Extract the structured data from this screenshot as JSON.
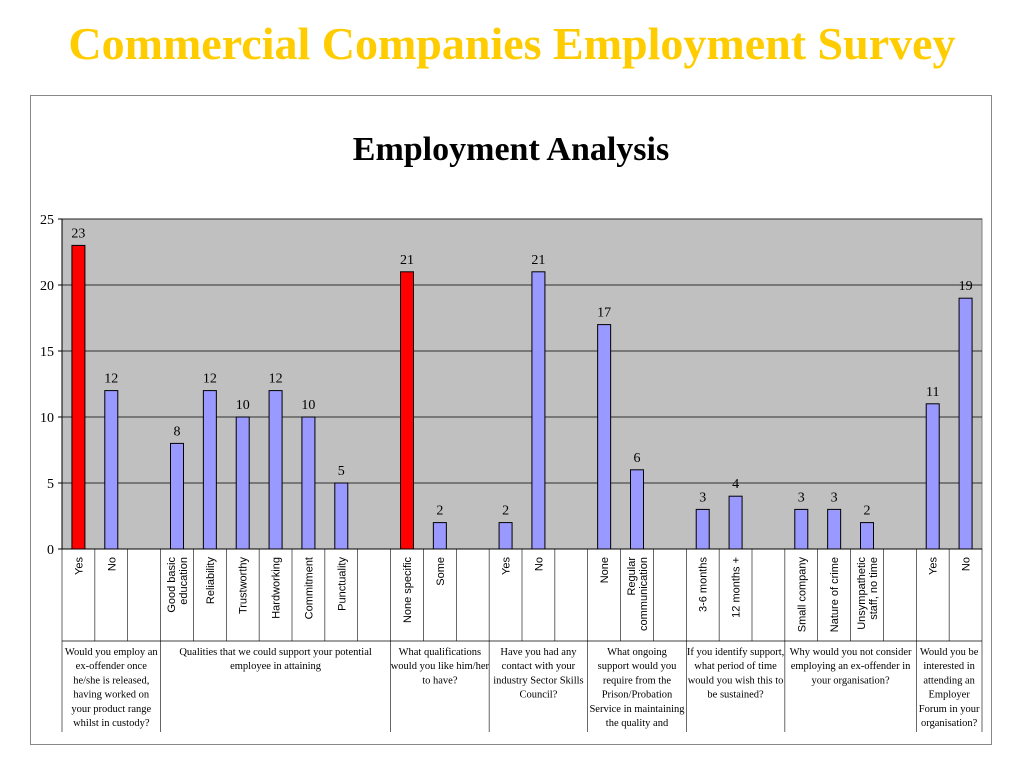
{
  "page": {
    "title": "Commercial Companies Employment Survey"
  },
  "colors": {
    "title": "#ffcc00",
    "plot_bg": "#c0c0c0",
    "bar": "#9999ff",
    "bar_highlight": "#ff0000"
  },
  "chart_data": {
    "type": "bar",
    "title": "Employment Analysis",
    "ylim": [
      0,
      25
    ],
    "yticks": [
      0,
      5,
      10,
      15,
      20,
      25
    ],
    "grid": true,
    "legend": "none",
    "groups": [
      {
        "question": [
          "Would you employ an",
          "ex-offender once",
          "he/she is released,",
          "having worked on",
          "your product range",
          "whilst in custody?"
        ],
        "bars": [
          {
            "label": [
              "Yes"
            ],
            "value": 23,
            "highlight": true
          },
          {
            "label": [
              "No"
            ],
            "value": 12
          }
        ]
      },
      {
        "question": [
          "Qualities that we could support your potential",
          "employee in attaining"
        ],
        "bars": [
          {
            "label": [
              "Good basic",
              "education"
            ],
            "value": 8
          },
          {
            "label": [
              "Reliability"
            ],
            "value": 12
          },
          {
            "label": [
              "Trustworthy"
            ],
            "value": 10
          },
          {
            "label": [
              "Hardworking"
            ],
            "value": 12
          },
          {
            "label": [
              "Commitment"
            ],
            "value": 10
          },
          {
            "label": [
              "Punctuality"
            ],
            "value": 5
          }
        ]
      },
      {
        "question": [
          "What qualifications",
          "would you like him/her",
          "to have?"
        ],
        "bars": [
          {
            "label": [
              "None specific"
            ],
            "value": 21,
            "highlight": true
          },
          {
            "label": [
              "Some"
            ],
            "value": 2
          }
        ]
      },
      {
        "question": [
          "Have you had any",
          "contact with your",
          "industry Sector Skills",
          "Council?"
        ],
        "bars": [
          {
            "label": [
              "Yes"
            ],
            "value": 2
          },
          {
            "label": [
              "No"
            ],
            "value": 21
          }
        ]
      },
      {
        "question": [
          "What ongoing",
          "support would you",
          "require from the",
          "Prison/Probation",
          "Service in maintaining",
          "the quality and"
        ],
        "bars": [
          {
            "label": [
              "None"
            ],
            "value": 17
          },
          {
            "label": [
              "Regular",
              "communication"
            ],
            "value": 6
          }
        ]
      },
      {
        "question": [
          "If you identify support,",
          "what period of time",
          "would you wish this to",
          "be sustained?"
        ],
        "bars": [
          {
            "label": [
              "3-6 months"
            ],
            "value": 3
          },
          {
            "label": [
              "12 months +"
            ],
            "value": 4
          }
        ]
      },
      {
        "question": [
          "Why would you not consider",
          "employing an ex-offender in",
          "your organisation?"
        ],
        "bars": [
          {
            "label": [
              "Small company"
            ],
            "value": 3
          },
          {
            "label": [
              "Nature of crime"
            ],
            "value": 3
          },
          {
            "label": [
              "Unsympathetic",
              "staff, no time"
            ],
            "value": 2
          }
        ]
      },
      {
        "question": [
          "Would you be",
          "interested in",
          "attending an",
          "Employer",
          "Forum in your",
          "organisation?"
        ],
        "bars": [
          {
            "label": [
              "Yes"
            ],
            "value": 11
          },
          {
            "label": [
              "No"
            ],
            "value": 19
          }
        ]
      }
    ]
  }
}
